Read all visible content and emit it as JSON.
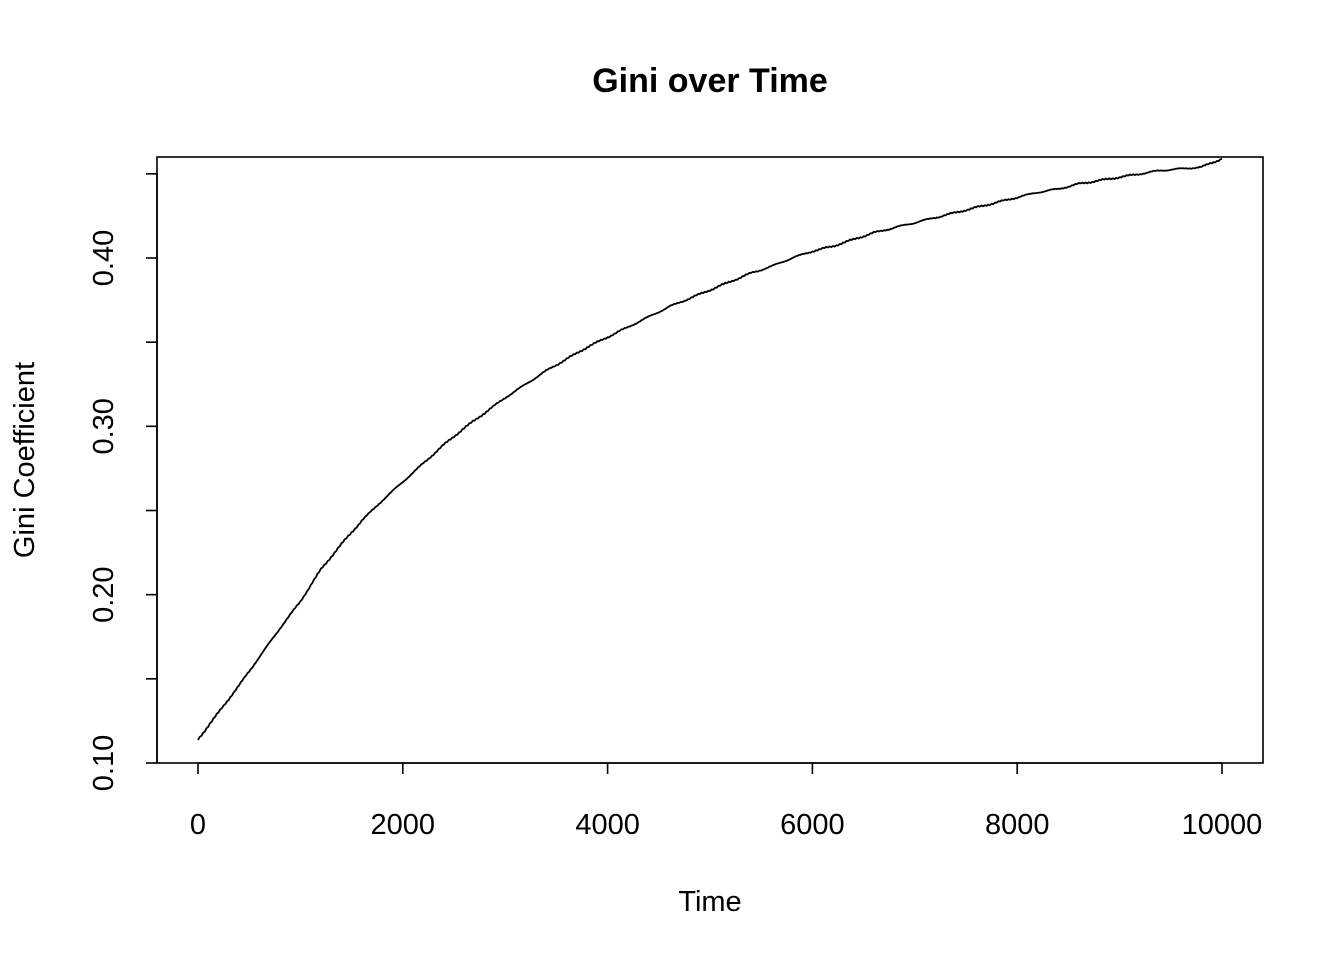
{
  "chart_data": {
    "type": "line",
    "title": "Gini over Time",
    "xlabel": "Time",
    "ylabel": "Gini Coefficient",
    "xlim": [
      0,
      10000
    ],
    "ylim": [
      0.1,
      0.46
    ],
    "xticks": [
      0,
      2000,
      4000,
      6000,
      8000,
      10000
    ],
    "xtick_labels": [
      "0",
      "2000",
      "4000",
      "6000",
      "8000",
      "10000"
    ],
    "yticks": [
      0.1,
      0.15,
      0.2,
      0.25,
      0.3,
      0.35,
      0.4,
      0.45
    ],
    "ytick_labels": [
      "0.10",
      "",
      "0.20",
      "",
      "0.30",
      "",
      "0.40",
      ""
    ],
    "grid": false,
    "legend": "none",
    "series": [
      {
        "color": "#000000",
        "x": [
          0,
          200,
          400,
          600,
          800,
          1000,
          1200,
          1400,
          1600,
          1800,
          2000,
          2200,
          2400,
          2600,
          2800,
          3000,
          3200,
          3400,
          3600,
          3800,
          4000,
          4200,
          4400,
          4600,
          4800,
          5000,
          5200,
          5400,
          5600,
          5800,
          6000,
          6200,
          6400,
          6600,
          6800,
          7000,
          7200,
          7400,
          7600,
          7800,
          8000,
          8200,
          8400,
          8600,
          8800,
          9000,
          9200,
          9400,
          9600,
          9800,
          10000
        ],
        "y": [
          0.114,
          0.13,
          0.146,
          0.163,
          0.18,
          0.196,
          0.215,
          0.23,
          0.244,
          0.256,
          0.267,
          0.278,
          0.289,
          0.299,
          0.308,
          0.317,
          0.325,
          0.333,
          0.34,
          0.347,
          0.353,
          0.359,
          0.365,
          0.371,
          0.376,
          0.381,
          0.386,
          0.391,
          0.395,
          0.4,
          0.404,
          0.407,
          0.411,
          0.415,
          0.418,
          0.421,
          0.424,
          0.427,
          0.43,
          0.433,
          0.436,
          0.439,
          0.441,
          0.444,
          0.446,
          0.448,
          0.45,
          0.452,
          0.453,
          0.454,
          0.459
        ]
      }
    ]
  }
}
